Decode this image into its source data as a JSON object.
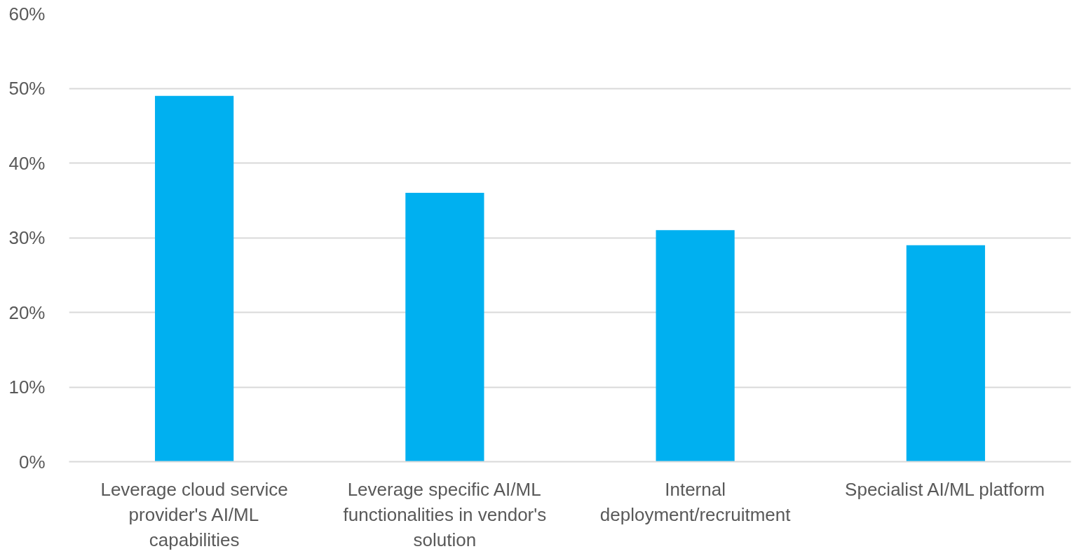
{
  "chart_data": {
    "type": "bar",
    "categories": [
      "Leverage cloud service provider's AI/ML capabilities",
      "Leverage specific AI/ML functionalities in vendor's solution",
      "Internal deployment/recruitment",
      "Specialist AI/ML platform"
    ],
    "values": [
      49,
      36,
      31,
      29
    ],
    "color": "#00b0f0",
    "ylim": [
      0,
      60
    ],
    "yticks": [
      {
        "value": 0,
        "label": "0%"
      },
      {
        "value": 10,
        "label": "10%"
      },
      {
        "value": 20,
        "label": "20%"
      },
      {
        "value": 30,
        "label": "30%"
      },
      {
        "value": 40,
        "label": "40%"
      },
      {
        "value": 50,
        "label": "50%"
      },
      {
        "value": 60,
        "label": "60%"
      }
    ],
    "grid": "y"
  }
}
